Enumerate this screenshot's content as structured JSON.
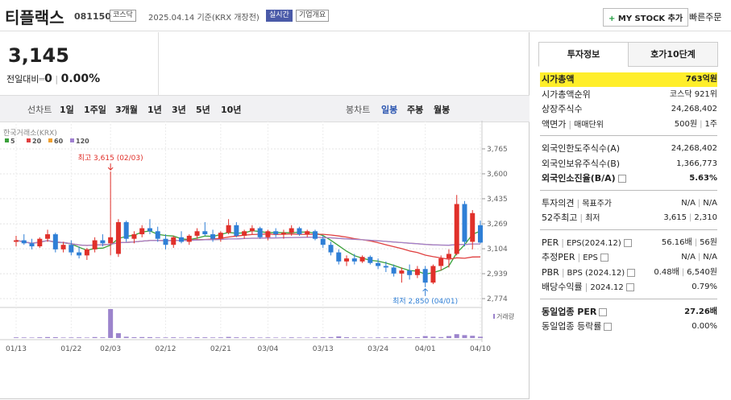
{
  "header": {
    "name": "티플랙스",
    "code": "081150",
    "market": "코스닥",
    "date": "2025.04.14",
    "basis": "기준(KRX 개장전)",
    "realtime": "실시간",
    "overview": "기업개요",
    "my_stock": "MY STOCK 추가",
    "quick_order": "빠른주문"
  },
  "price": {
    "current": "3,145",
    "change_label": "전일대비",
    "change": "0",
    "change_rate": "0.00%"
  },
  "toolbar": {
    "line_chart": "선차트",
    "line_periods": [
      "1일",
      "1주일",
      "3개월",
      "1년",
      "3년",
      "5년",
      "10년"
    ],
    "candle_chart": "봉차트",
    "candle_periods": [
      "일봉",
      "주봉",
      "월봉"
    ],
    "active_candle_period": 0
  },
  "chart_data": {
    "type": "candlestick",
    "source": "한국거래소(KRX)",
    "ma_periods": [
      5,
      20,
      60,
      120
    ],
    "ma_colors": [
      "#3aa03a",
      "#e04040",
      "#f0a030",
      "#a080d0"
    ],
    "categories": [
      "01/13",
      null,
      null,
      null,
      null,
      null,
      null,
      "01/22",
      null,
      null,
      null,
      null,
      "02/03",
      null,
      null,
      null,
      null,
      null,
      null,
      "02/12",
      null,
      null,
      null,
      null,
      null,
      null,
      "02/21",
      null,
      null,
      null,
      null,
      null,
      "03/04",
      null,
      null,
      null,
      null,
      null,
      null,
      "03/13",
      null,
      null,
      null,
      null,
      null,
      null,
      "03/24",
      null,
      null,
      null,
      null,
      null,
      "04/01",
      null,
      null,
      null,
      null,
      null,
      null,
      "04/10"
    ],
    "open": [
      3150,
      3160,
      3140,
      3120,
      3170,
      3200,
      3100,
      3130,
      3080,
      3060,
      3100,
      3160,
      3140,
      3070,
      3280,
      3170,
      3200,
      3240,
      3220,
      3170,
      3130,
      3180,
      3150,
      3190,
      3220,
      3200,
      3170,
      3210,
      3260,
      3190,
      3220,
      3240,
      3180,
      3220,
      3200,
      3210,
      3240,
      3200,
      3220,
      3170,
      3130,
      3080,
      3020,
      3040,
      3020,
      3050,
      3010,
      2990,
      2980,
      2940,
      2960,
      2930,
      2970,
      2880,
      2990,
      3040,
      3070,
      3400,
      3150,
      3260
    ],
    "high": [
      3190,
      3200,
      3170,
      3180,
      3230,
      3210,
      3150,
      3160,
      3120,
      3110,
      3180,
      3200,
      3615,
      3300,
      3290,
      3220,
      3260,
      3300,
      3250,
      3200,
      3190,
      3220,
      3200,
      3240,
      3280,
      3230,
      3220,
      3300,
      3280,
      3230,
      3260,
      3250,
      3230,
      3240,
      3230,
      3260,
      3250,
      3230,
      3230,
      3190,
      3150,
      3100,
      3060,
      3070,
      3060,
      3060,
      3040,
      3020,
      3000,
      2980,
      3000,
      2990,
      2990,
      3000,
      3060,
      3100,
      3460,
      3420,
      3360,
      3290
    ],
    "low": [
      3120,
      3130,
      3100,
      3110,
      3150,
      3080,
      3080,
      3060,
      3040,
      3030,
      3080,
      3120,
      3060,
      3050,
      3150,
      3140,
      3180,
      3200,
      3150,
      3100,
      3110,
      3140,
      3130,
      3170,
      3190,
      3150,
      3150,
      3200,
      3180,
      3170,
      3200,
      3170,
      3160,
      3180,
      3170,
      3190,
      3190,
      3180,
      3160,
      3110,
      3060,
      3000,
      2990,
      3000,
      3010,
      3000,
      2970,
      2950,
      2920,
      2880,
      2900,
      2910,
      2850,
      2870,
      2960,
      2980,
      3060,
      3120,
      3100,
      3140
    ],
    "close": [
      3160,
      3140,
      3120,
      3170,
      3200,
      3100,
      3130,
      3080,
      3060,
      3100,
      3160,
      3140,
      3180,
      3280,
      3170,
      3200,
      3240,
      3220,
      3170,
      3130,
      3180,
      3150,
      3190,
      3220,
      3200,
      3170,
      3210,
      3260,
      3190,
      3220,
      3240,
      3180,
      3220,
      3200,
      3210,
      3240,
      3200,
      3220,
      3170,
      3130,
      3080,
      3020,
      3040,
      3020,
      3050,
      3010,
      2990,
      2980,
      2940,
      2960,
      2930,
      2970,
      2880,
      2990,
      3040,
      3070,
      3400,
      3150,
      3340,
      3145
    ],
    "volume": [
      20000,
      18000,
      15000,
      22000,
      30000,
      25000,
      16000,
      18000,
      20000,
      15000,
      30000,
      22000,
      900000,
      150000,
      40000,
      25000,
      30000,
      28000,
      20000,
      18000,
      22000,
      16000,
      20000,
      25000,
      22000,
      18000,
      20000,
      35000,
      22000,
      18000,
      20000,
      16000,
      18000,
      15000,
      14000,
      20000,
      16000,
      15000,
      18000,
      22000,
      30000,
      50000,
      25000,
      18000,
      16000,
      15000,
      20000,
      18000,
      25000,
      30000,
      22000,
      25000,
      60000,
      40000,
      30000,
      60000,
      120000,
      90000,
      70000,
      40000
    ],
    "volume_label": "거래량",
    "up_color": "#e0302a",
    "down_color": "#2f7fd6",
    "volume_color": "#9c84cc",
    "ylim": [
      2737,
      3898
    ],
    "yticks": [
      {
        "value": 3765,
        "label": "3,765"
      },
      {
        "value": 3600,
        "label": "3,600"
      },
      {
        "value": 3435,
        "label": "3,435"
      },
      {
        "value": 3269,
        "label": "3,269"
      },
      {
        "value": 3104,
        "label": "3,104"
      },
      {
        "value": 2939,
        "label": "2,939"
      },
      {
        "value": 2774,
        "label": "2,774"
      }
    ],
    "high_note": "최고 3,615 (02/03)",
    "low_note": "최저 2,850 (04/01)"
  },
  "invest_info": {
    "tabs": [
      "투자정보",
      "호가10단계"
    ],
    "active_tab": 0,
    "groups": [
      [
        {
          "labels": [
            "시가총액"
          ],
          "values": [
            "763억원"
          ],
          "highlight": true
        },
        {
          "labels": [
            "시가총액순위"
          ],
          "values": [
            "코스닥 921위"
          ]
        },
        {
          "labels": [
            "상장주식수"
          ],
          "values": [
            "24,268,402"
          ]
        },
        {
          "labels": [
            "액면가",
            "매매단위"
          ],
          "values": [
            "500원",
            "1주"
          ]
        }
      ],
      [
        {
          "labels": [
            "외국인한도주식수(A)"
          ],
          "values": [
            "24,268,402"
          ]
        },
        {
          "labels": [
            "외국인보유주식수(B)"
          ],
          "values": [
            "1,366,773"
          ]
        },
        {
          "labels": [
            "외국인소진율(B/A)"
          ],
          "values": [
            "5.63%"
          ],
          "bold": true,
          "help": true
        }
      ],
      [
        {
          "labels": [
            "투자의견",
            "목표주가"
          ],
          "values": [
            "N/A",
            "N/A"
          ]
        },
        {
          "labels": [
            "52주최고",
            "최저"
          ],
          "values": [
            "3,615",
            "2,310"
          ]
        }
      ],
      [
        {
          "labels": [
            "PER",
            "EPS(2024.12)"
          ],
          "values": [
            "56.16배",
            "56원"
          ],
          "help": true
        },
        {
          "labels": [
            "추정PER",
            "EPS"
          ],
          "values": [
            "N/A",
            "N/A"
          ],
          "help": true
        },
        {
          "labels": [
            "PBR",
            "BPS (2024.12)"
          ],
          "values": [
            "0.48배",
            "6,540원"
          ],
          "help": true
        },
        {
          "labels": [
            "배당수익률",
            "2024.12"
          ],
          "values": [
            "0.79%"
          ],
          "help": true
        }
      ],
      [
        {
          "labels": [
            "동일업종 PER"
          ],
          "values": [
            "27.26배"
          ],
          "bold": true,
          "help": true
        },
        {
          "labels": [
            "동일업종 등락률"
          ],
          "values": [
            "0.00%"
          ],
          "help": true
        }
      ]
    ]
  }
}
